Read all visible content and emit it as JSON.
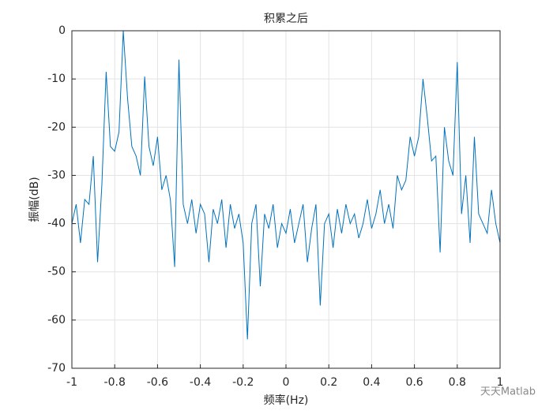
{
  "chart_data": {
    "type": "line",
    "title": "积累之后",
    "xlabel": "频率(Hz)",
    "ylabel": "振幅(dB)",
    "watermark": "天天Matlab",
    "x": [
      -1,
      -0.98,
      -0.96,
      -0.94,
      -0.92,
      -0.9,
      -0.88,
      -0.86,
      -0.84,
      -0.82,
      -0.8,
      -0.78,
      -0.76,
      -0.74,
      -0.72,
      -0.7,
      -0.68,
      -0.66,
      -0.64,
      -0.62,
      -0.6,
      -0.58,
      -0.56,
      -0.54,
      -0.52,
      -0.5,
      -0.48,
      -0.46,
      -0.44,
      -0.42,
      -0.4,
      -0.38,
      -0.36,
      -0.34,
      -0.32,
      -0.3,
      -0.28,
      -0.26,
      -0.24,
      -0.22,
      -0.2,
      -0.18,
      -0.16,
      -0.14,
      -0.12,
      -0.1,
      -0.08,
      -0.06,
      -0.04,
      -0.02,
      0,
      0.02,
      0.04,
      0.06,
      0.08,
      0.1,
      0.12,
      0.14,
      0.16,
      0.18,
      0.2,
      0.22,
      0.24,
      0.26,
      0.28,
      0.3,
      0.32,
      0.34,
      0.36,
      0.38,
      0.4,
      0.42,
      0.44,
      0.46,
      0.48,
      0.5,
      0.52,
      0.54,
      0.56,
      0.58,
      0.6,
      0.62,
      0.64,
      0.66,
      0.68,
      0.7,
      0.72,
      0.74,
      0.76,
      0.78,
      0.8,
      0.82,
      0.84,
      0.86,
      0.88,
      0.9,
      0.92,
      0.94,
      0.96,
      0.98,
      1
    ],
    "series": [
      {
        "name": "spectrum",
        "color": "#0072bd",
        "values": [
          -40,
          -36,
          -44,
          -35,
          -36,
          -26,
          -48,
          -32,
          -8.5,
          -24,
          -25,
          -21,
          0,
          -14,
          -24,
          -26,
          -30,
          -9.5,
          -24,
          -28,
          -22,
          -33,
          -30,
          -35,
          -49,
          -6,
          -36,
          -40,
          -35,
          -42,
          -36,
          -38,
          -48,
          -37,
          -40,
          -35,
          -45,
          -36,
          -41,
          -38,
          -44,
          -64,
          -40,
          -36,
          -53,
          -38,
          -41,
          -36,
          -45,
          -40,
          -42,
          -37,
          -44,
          -40,
          -36,
          -48,
          -41,
          -36,
          -57,
          -40,
          -38,
          -45,
          -37,
          -42,
          -36,
          -40,
          -38,
          -43,
          -40,
          -35,
          -41,
          -38,
          -33,
          -40,
          -36,
          -41,
          -30,
          -33,
          -31,
          -22,
          -26,
          -22,
          -10,
          -18,
          -27,
          -26,
          -46,
          -20,
          -27,
          -30,
          -6.5,
          -38,
          -30,
          -44,
          -22,
          -38,
          -40,
          -42,
          -33,
          -40,
          -44
        ]
      }
    ],
    "xlim": [
      -1,
      1
    ],
    "ylim": [
      -70,
      0
    ],
    "xticks": [
      -1,
      -0.8,
      -0.6,
      -0.4,
      -0.2,
      0,
      0.2,
      0.4,
      0.6,
      0.8,
      1
    ],
    "yticks": [
      0,
      -10,
      -20,
      -30,
      -40,
      -50,
      -60,
      -70
    ],
    "grid": true
  }
}
